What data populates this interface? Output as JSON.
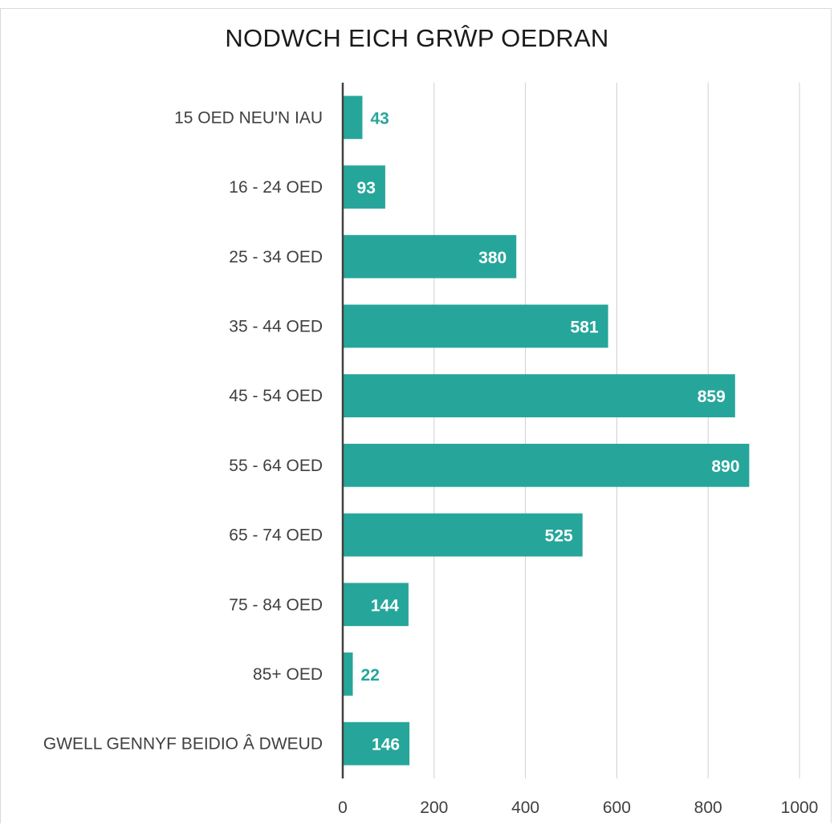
{
  "chart_data": {
    "type": "bar",
    "orientation": "horizontal",
    "title": "NODWCH EICH GRŴP OEDRAN",
    "categories": [
      "15 OED NEU'N IAU",
      "16 - 24 OED",
      "25 - 34 OED",
      "35 - 44 OED",
      "45 - 54 OED",
      "55 - 64 OED",
      "65 - 74 OED",
      "75 - 84 OED",
      "85+ OED",
      "GWELL GENNYF BEIDIO Â DWEUD"
    ],
    "values": [
      43,
      93,
      380,
      581,
      859,
      890,
      525,
      144,
      22,
      146
    ],
    "xlim": [
      0,
      1000
    ],
    "xticks": [
      0,
      200,
      400,
      600,
      800,
      1000
    ],
    "grid": "vertical",
    "bar_color": "#26a69a",
    "axis_color": "#404040",
    "grid_color": "#d0d0d0"
  }
}
